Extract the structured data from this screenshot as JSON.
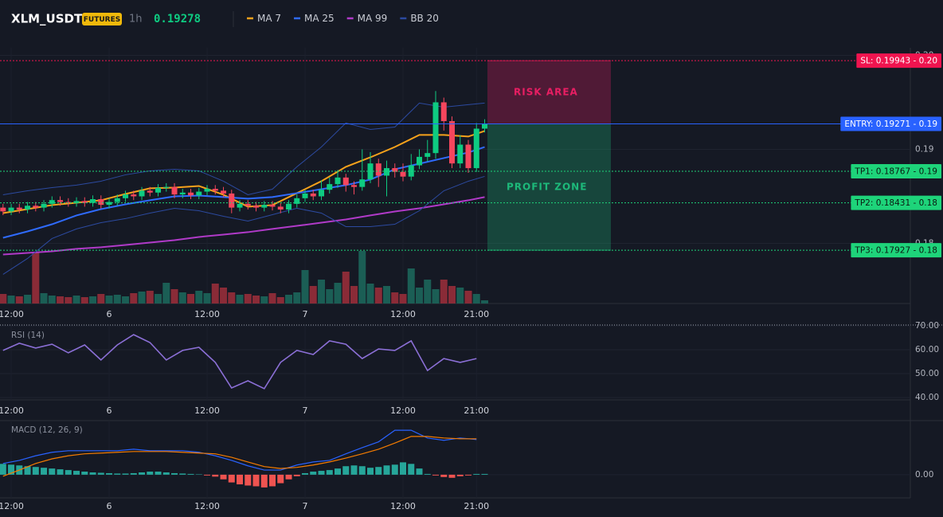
{
  "header": {
    "symbol": "XLM_USDT",
    "badge": "FUTURES",
    "interval": "1h",
    "price": 0.19278
  },
  "chart_data": [
    {
      "type": "candlestick",
      "x": [
        -1,
        0,
        1,
        2,
        3,
        4,
        5,
        6,
        7,
        8,
        9,
        10,
        11,
        12,
        13,
        14,
        15,
        16,
        17,
        18,
        19,
        20,
        21,
        22,
        23,
        24,
        25,
        26,
        27,
        28,
        29,
        30,
        31,
        32,
        33,
        34,
        35,
        36,
        37,
        38,
        39,
        40,
        41,
        42,
        43,
        44,
        45,
        46,
        47,
        48,
        49,
        50,
        51,
        52,
        53,
        54,
        55,
        56,
        57,
        58
      ],
      "open": [
        0.1838,
        0.1834,
        0.1838,
        0.1836,
        0.184,
        0.1838,
        0.1842,
        0.1846,
        0.1844,
        0.1843,
        0.1845,
        0.1843,
        0.1847,
        0.1841,
        0.1844,
        0.1848,
        0.1852,
        0.185,
        0.1856,
        0.1854,
        0.1859,
        0.186,
        0.1852,
        0.1854,
        0.1851,
        0.1855,
        0.1858,
        0.1856,
        0.1853,
        0.1838,
        0.1842,
        0.184,
        0.1838,
        0.1841,
        0.1839,
        0.1836,
        0.1842,
        0.1848,
        0.1853,
        0.185,
        0.1857,
        0.1863,
        0.187,
        0.1862,
        0.186,
        0.1868,
        0.1885,
        0.1872,
        0.188,
        0.1876,
        0.1871,
        0.1883,
        0.1892,
        0.1896,
        0.195,
        0.193,
        0.1885,
        0.1905,
        0.188,
        0.1922
      ],
      "high": [
        0.1842,
        0.1842,
        0.1842,
        0.1844,
        0.1844,
        0.1846,
        0.185,
        0.185,
        0.1848,
        0.1849,
        0.1849,
        0.1851,
        0.1851,
        0.1848,
        0.1852,
        0.1856,
        0.1856,
        0.186,
        0.186,
        0.1863,
        0.1864,
        0.1864,
        0.1858,
        0.1858,
        0.1859,
        0.1862,
        0.1862,
        0.186,
        0.1857,
        0.1846,
        0.1846,
        0.1844,
        0.1845,
        0.1845,
        0.1843,
        0.1846,
        0.1852,
        0.1857,
        0.1857,
        0.1867,
        0.187,
        0.1878,
        0.1874,
        0.1866,
        0.19,
        0.1897,
        0.189,
        0.1888,
        0.1885,
        0.1885,
        0.1895,
        0.19,
        0.191,
        0.1962,
        0.1955,
        0.1935,
        0.1915,
        0.191,
        0.1928,
        0.1932
      ],
      "low": [
        0.183,
        0.183,
        0.1832,
        0.1832,
        0.1834,
        0.1834,
        0.1838,
        0.184,
        0.1839,
        0.1839,
        0.1839,
        0.1839,
        0.1837,
        0.1837,
        0.184,
        0.1844,
        0.1846,
        0.1846,
        0.185,
        0.185,
        0.1855,
        0.1848,
        0.1848,
        0.1847,
        0.1847,
        0.1851,
        0.1852,
        0.1849,
        0.1832,
        0.1834,
        0.1836,
        0.1834,
        0.1834,
        0.1835,
        0.1832,
        0.1832,
        0.1838,
        0.1844,
        0.1846,
        0.1846,
        0.1853,
        0.1859,
        0.1855,
        0.1852,
        0.1856,
        0.1864,
        0.186,
        0.185,
        0.187,
        0.1866,
        0.1867,
        0.1879,
        0.1887,
        0.189,
        0.192,
        0.188,
        0.188,
        0.1875,
        0.1876,
        0.1918
      ],
      "close": [
        0.1834,
        0.1838,
        0.1836,
        0.184,
        0.1838,
        0.1842,
        0.1846,
        0.1844,
        0.1843,
        0.1845,
        0.1843,
        0.1847,
        0.1841,
        0.1844,
        0.1848,
        0.1852,
        0.185,
        0.1856,
        0.1854,
        0.1859,
        0.186,
        0.1852,
        0.1854,
        0.1851,
        0.1855,
        0.1858,
        0.1856,
        0.1853,
        0.1838,
        0.1842,
        0.184,
        0.1838,
        0.1841,
        0.1839,
        0.1836,
        0.1842,
        0.1848,
        0.1853,
        0.185,
        0.1857,
        0.1863,
        0.187,
        0.1862,
        0.186,
        0.1868,
        0.1885,
        0.1872,
        0.188,
        0.1876,
        0.1871,
        0.1883,
        0.1892,
        0.1896,
        0.195,
        0.193,
        0.1885,
        0.1905,
        0.188,
        0.1922,
        0.1927
      ],
      "volume": [
        12,
        10,
        9,
        11,
        64,
        13,
        10,
        9,
        8,
        10,
        8,
        9,
        12,
        10,
        11,
        9,
        13,
        15,
        16,
        12,
        26,
        18,
        14,
        12,
        16,
        13,
        25,
        20,
        14,
        11,
        12,
        10,
        9,
        13,
        8,
        11,
        14,
        42,
        22,
        30,
        18,
        26,
        40,
        22,
        66,
        25,
        20,
        22,
        14,
        12,
        44,
        20,
        30,
        18,
        30,
        22,
        20,
        16,
        12,
        4
      ],
      "up_color": "#0ecb81",
      "down_color": "#f6465d",
      "volume_up_color": "#1b5e55",
      "volume_down_color": "#8a2b37",
      "series": [
        {
          "name": "MA 7",
          "color": "#f7a21b",
          "x": [
            -1,
            2,
            5,
            8,
            11,
            14,
            17,
            20,
            23,
            26,
            29,
            32,
            35,
            38,
            41,
            44,
            47,
            50,
            53,
            56,
            58
          ],
          "values": [
            0.18322,
            0.18364,
            0.18407,
            0.18432,
            0.18458,
            0.18525,
            0.18585,
            0.18593,
            0.1861,
            0.18517,
            0.1839,
            0.18407,
            0.18534,
            0.18661,
            0.18814,
            0.18915,
            0.19025,
            0.19153,
            0.19153,
            0.19136,
            0.19195
          ]
        },
        {
          "name": "MA 25",
          "color": "#2f6bff",
          "x": [
            -1,
            2,
            5,
            8,
            11,
            14,
            17,
            20,
            23,
            26,
            29,
            32,
            35,
            38,
            41,
            44,
            47,
            50,
            53,
            56,
            58
          ],
          "values": [
            0.18059,
            0.18127,
            0.18203,
            0.18297,
            0.18364,
            0.18415,
            0.18458,
            0.185,
            0.18508,
            0.18492,
            0.18475,
            0.18492,
            0.18534,
            0.18576,
            0.18619,
            0.18678,
            0.18788,
            0.18847,
            0.18907,
            0.18966,
            0.19025
          ]
        },
        {
          "name": "MA 99",
          "color": "#b03ac8",
          "x": [
            -1,
            2,
            5,
            8,
            11,
            14,
            17,
            20,
            23,
            26,
            29,
            32,
            35,
            38,
            41,
            44,
            47,
            50,
            53,
            56,
            58
          ],
          "values": [
            0.17881,
            0.17898,
            0.17915,
            0.17941,
            0.17958,
            0.17983,
            0.18008,
            0.18034,
            0.18068,
            0.18093,
            0.18119,
            0.18153,
            0.18186,
            0.1822,
            0.18254,
            0.18297,
            0.18339,
            0.18373,
            0.18415,
            0.18458,
            0.18492
          ]
        },
        {
          "name": "BB 20",
          "color": "#2c4aa0",
          "x": [
            -1,
            2,
            5,
            8,
            11,
            14,
            17,
            20,
            23,
            26,
            29,
            32,
            35,
            38,
            41,
            44,
            47,
            50,
            53,
            56,
            58
          ],
          "upper": [
            0.18517,
            0.18559,
            0.18593,
            0.18619,
            0.18661,
            0.18729,
            0.18771,
            0.18788,
            0.18771,
            0.18661,
            0.18517,
            0.18576,
            0.18814,
            0.19025,
            0.1928,
            0.19212,
            0.19237,
            0.19492,
            0.19449,
            0.19475,
            0.19492
          ],
          "lower": [
            0.1767,
            0.17839,
            0.18051,
            0.18153,
            0.1822,
            0.18263,
            0.18322,
            0.18373,
            0.18347,
            0.18288,
            0.18237,
            0.18305,
            0.18373,
            0.18322,
            0.18178,
            0.18178,
            0.18203,
            0.18347,
            0.18559,
            0.18661,
            0.18712
          ]
        }
      ],
      "levels": [
        {
          "label": "SL: 0.19943 - 0.20",
          "value": 0.19943,
          "color": "#f0144f"
        },
        {
          "label": "ENTRY: 0.19271 - 0.19",
          "value": 0.19271,
          "color": "#2962ff"
        },
        {
          "label": "TP1: 0.18767 - 0.19",
          "value": 0.18767,
          "color": "#1ed47a"
        },
        {
          "label": "TP2: 0.18431 - 0.18",
          "value": 0.18431,
          "color": "#1ed47a"
        },
        {
          "label": "TP3: 0.17927 - 0.18",
          "value": 0.17927,
          "color": "#1ed47a"
        }
      ],
      "zones": [
        {
          "label": "RISK AREA",
          "from": 0.19271,
          "to": 0.19943,
          "color": "#e91e63"
        },
        {
          "label": "PROFIT ZONE",
          "from": 0.19271,
          "to": 0.17927,
          "color": "#1db97a"
        }
      ],
      "xlim": [
        -1.37,
        110.15
      ],
      "xticks": [
        {
          "value": 0,
          "label": "12:00"
        },
        {
          "value": 12,
          "label": "6"
        },
        {
          "value": 24,
          "label": "12:00"
        },
        {
          "value": 36,
          "label": "7"
        },
        {
          "value": 48,
          "label": "12:00"
        },
        {
          "value": 57,
          "label": "21:00"
        }
      ],
      "ylim": [
        0.1736,
        0.2008
      ],
      "yticks": [
        {
          "value": 0.2,
          "label": "0.20"
        },
        0.19,
        0.18
      ],
      "grid": true
    },
    {
      "type": "line",
      "title": "RSI (14)",
      "color": "#8b6fd6",
      "x": [
        -1,
        1,
        3,
        5,
        7,
        9,
        11,
        13,
        15,
        17,
        19,
        21,
        23,
        25,
        27,
        29,
        31,
        33,
        35,
        37,
        39,
        41,
        43,
        45,
        47,
        49,
        51,
        53,
        55,
        57
      ],
      "values": [
        59.7,
        62.7,
        60.7,
        62.3,
        58.7,
        62,
        55.7,
        62,
        66.3,
        63,
        55.7,
        59.7,
        61,
        54.7,
        44,
        47,
        43.7,
        54.7,
        59.7,
        58,
        63.7,
        62.3,
        56.3,
        60.3,
        59.7,
        63.7,
        51.3,
        56.3,
        54.7,
        56.3
      ],
      "xlim": [
        -1.37,
        110.15
      ],
      "xticks": [
        {
          "value": 0,
          "label": "12:00"
        },
        {
          "value": 12,
          "label": "6"
        },
        {
          "value": 24,
          "label": "12:00"
        },
        {
          "value": 36,
          "label": "7"
        },
        {
          "value": 48,
          "label": "12:00"
        },
        {
          "value": 57,
          "label": "21:00"
        }
      ],
      "ylim": [
        39,
        70
      ],
      "yticks": [
        {
          "value": 70,
          "label": "70.00"
        },
        {
          "value": 60,
          "label": "60.00"
        },
        {
          "value": 50,
          "label": "50.00"
        },
        {
          "value": 40,
          "label": "40.00"
        }
      ],
      "grid": true
    },
    {
      "type": "macd",
      "title": "MACD (12, 26, 9)",
      "series": [
        {
          "color": "#2962ff",
          "x": [
            -1,
            1,
            3,
            5,
            7,
            9,
            11,
            13,
            15,
            17,
            19,
            21,
            23,
            25,
            27,
            29,
            31,
            33,
            35,
            37,
            39,
            41,
            43,
            45,
            47,
            49,
            51,
            53,
            55,
            57
          ],
          "values": [
            0.00029,
            0.00037,
            0.00049,
            0.00058,
            0.00062,
            0.00062,
            0.00062,
            0.00062,
            0.00066,
            0.00062,
            0.00062,
            0.00062,
            0.00058,
            0.00049,
            0.00037,
            0.00023,
            0.00012,
            0.00012,
            0.00025,
            0.00033,
            0.00037,
            0.00054,
            0.0007,
            0.00085,
            0.00115,
            0.00115,
            0.00095,
            0.00089,
            0.00095,
            0.00091
          ]
        },
        {
          "color": "#f57c00",
          "x": [
            -1,
            1,
            3,
            5,
            7,
            9,
            11,
            13,
            15,
            17,
            19,
            21,
            23,
            25,
            27,
            29,
            31,
            33,
            35,
            37,
            39,
            41,
            43,
            45,
            47,
            49,
            51,
            53,
            55,
            57
          ],
          "values": [
            -4e-05,
            0.00012,
            0.00029,
            0.00041,
            0.00049,
            0.00054,
            0.00056,
            0.00058,
            0.0006,
            0.0006,
            0.0006,
            0.00058,
            0.00056,
            0.00054,
            0.00045,
            0.00033,
            0.00021,
            0.00016,
            0.00019,
            0.00025,
            0.00033,
            0.00043,
            0.00054,
            0.00066,
            0.00082,
            0.00099,
            0.00099,
            0.00095,
            0.00093,
            0.00093
          ]
        }
      ],
      "histogram": {
        "up_color": "#26a69a",
        "down_color": "#ef5350",
        "x": [
          -1,
          0,
          1,
          2,
          3,
          4,
          5,
          6,
          7,
          8,
          9,
          10,
          11,
          12,
          13,
          14,
          15,
          16,
          17,
          18,
          19,
          20,
          21,
          22,
          23,
          24,
          25,
          26,
          27,
          28,
          29,
          30,
          31,
          32,
          33,
          34,
          35,
          36,
          37,
          38,
          39,
          40,
          41,
          42,
          43,
          44,
          45,
          46,
          47,
          48,
          49,
          50,
          51,
          52,
          53,
          54,
          55,
          56,
          57,
          58
        ],
        "values": [
          0.00028,
          0.00026,
          0.00024,
          0.00022,
          0.0002,
          0.00018,
          0.00016,
          0.00014,
          0.00012,
          0.0001,
          8e-05,
          6e-05,
          5e-05,
          4e-05,
          3e-05,
          3e-05,
          4e-05,
          6e-05,
          8e-05,
          8e-05,
          6e-05,
          4e-05,
          3e-05,
          2e-05,
          1e-05,
          -2e-05,
          -5e-05,
          -0.00012,
          -0.0002,
          -0.00025,
          -0.00028,
          -0.0003,
          -0.00033,
          -0.0003,
          -0.00022,
          -0.00012,
          -4e-05,
          4e-05,
          8e-05,
          0.0001,
          0.00012,
          0.00016,
          0.00022,
          0.00024,
          0.00022,
          0.00018,
          0.0002,
          0.00024,
          0.00026,
          0.00032,
          0.00028,
          0.00016,
          2e-05,
          -2e-05,
          -6e-05,
          -8e-05,
          -4e-05,
          -2e-05,
          2e-05,
          2e-05
        ]
      },
      "xlim": [
        -1.37,
        110.15
      ],
      "xticks": [
        {
          "value": 0,
          "label": "12:00"
        },
        {
          "value": 12,
          "label": "6"
        },
        {
          "value": 24,
          "label": "12:00"
        },
        {
          "value": 36,
          "label": "7"
        },
        {
          "value": 48,
          "label": "12:00"
        },
        {
          "value": 57,
          "label": "21:00"
        }
      ],
      "ylim": [
        -0.0006,
        0.0014
      ],
      "yticks": [
        {
          "value": 0,
          "label": "0.00"
        }
      ],
      "grid": true
    }
  ]
}
